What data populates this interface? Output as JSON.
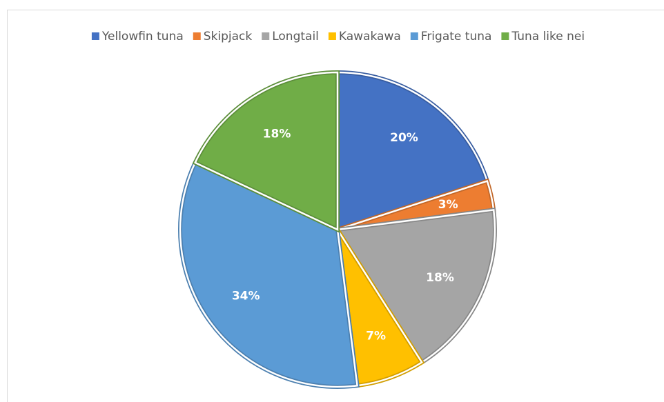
{
  "chart_data": {
    "type": "pie",
    "categories": [
      "Yellowfin tuna",
      "Skipjack",
      "Longtail",
      "Kawakawa",
      "Frigate tuna",
      "Tuna like nei"
    ],
    "values": [
      20,
      3,
      18,
      7,
      34,
      18
    ],
    "value_labels": [
      "20%",
      "3%",
      "18%",
      "7%",
      "34%",
      "18%"
    ],
    "colors": [
      "#4472c4",
      "#ed7d31",
      "#a5a5a5",
      "#ffc000",
      "#5b9bd5",
      "#70ad47"
    ],
    "legend": "top"
  }
}
